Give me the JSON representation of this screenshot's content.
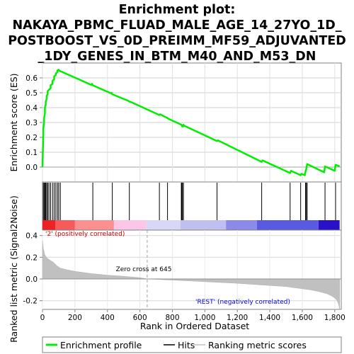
{
  "chart_data": {
    "type": "line",
    "title_lines": [
      "Enrichment plot:",
      "NAKAYA_PBMC_FLUAD_MALE_AGE_14_27YO_1D_",
      "POSTBOOST_VS_0D_PREIMM_MF59_ADJUVANTED",
      "_1DY_GENES_IN_BTM_M40_AND_M53_DN"
    ],
    "xlabel": "Rank in Ordered Dataset",
    "xlim": [
      0,
      1840
    ],
    "x_ticks": [
      0,
      200,
      400,
      600,
      800,
      1000,
      1200,
      1400,
      1600,
      1800
    ],
    "x_tick_labels": [
      "0",
      "200",
      "400",
      "600",
      "800",
      "1,000",
      "1,200",
      "1,400",
      "1,600",
      "1,800"
    ],
    "es_panel": {
      "ylabel": "Enrichment score (ES)",
      "ylim": [
        -0.1,
        0.7
      ],
      "y_ticks": [
        0.0,
        0.1,
        0.2,
        0.3,
        0.4,
        0.5,
        0.6
      ],
      "y_tick_labels": [
        "0.0",
        "0.1",
        "0.2",
        "0.3",
        "0.4",
        "0.5",
        "0.6"
      ],
      "series": [
        {
          "name": "Enrichment profile",
          "color": "#00ee00",
          "x": [
            0,
            5,
            5,
            10,
            10,
            15,
            15,
            20,
            20,
            26,
            26,
            32,
            32,
            40,
            40,
            50,
            50,
            62,
            62,
            72,
            72,
            82,
            82,
            92,
            92,
            100,
            100,
            110,
            300,
            305,
            310,
            420,
            425,
            430,
            530,
            535,
            540,
            720,
            725,
            770,
            775,
            855,
            858,
            862,
            865,
            868,
            870,
            1075,
            1080,
            1350,
            1355,
            1525,
            1530,
            1590,
            1595,
            1615,
            1620,
            1625,
            1630,
            1735,
            1740,
            1800,
            1805,
            1830
          ],
          "y": [
            0.0,
            0.22,
            0.26,
            0.3,
            0.33,
            0.36,
            0.4,
            0.42,
            0.44,
            0.46,
            0.48,
            0.49,
            0.51,
            0.52,
            0.52,
            0.53,
            0.55,
            0.56,
            0.58,
            0.59,
            0.61,
            0.62,
            0.63,
            0.64,
            0.65,
            0.655,
            0.65,
            0.645,
            0.553,
            0.56,
            0.55,
            0.497,
            0.5,
            0.49,
            0.445,
            0.44,
            0.44,
            0.35,
            0.355,
            0.33,
            0.325,
            0.285,
            0.277,
            0.28,
            0.272,
            0.285,
            0.28,
            0.175,
            0.18,
            0.035,
            0.045,
            -0.04,
            -0.025,
            -0.055,
            -0.045,
            -0.055,
            -0.03,
            -0.01,
            0.02,
            -0.035,
            0.005,
            -0.025,
            0.015,
            0.005
          ]
        }
      ]
    },
    "hits_x": [
      5,
      10,
      15,
      20,
      26,
      32,
      40,
      50,
      62,
      72,
      82,
      92,
      100,
      110,
      310,
      430,
      535,
      720,
      770,
      855,
      858,
      862,
      868,
      1075,
      1350,
      1525,
      1590,
      1620,
      1625,
      1630,
      1740,
      1805
    ],
    "rank_bar_colors": [
      {
        "from": 0,
        "to": 80,
        "color": "#ee2222"
      },
      {
        "from": 80,
        "to": 200,
        "color": "#f65a5a"
      },
      {
        "from": 200,
        "to": 440,
        "color": "#fa9090"
      },
      {
        "from": 440,
        "to": 640,
        "color": "#fcc6e6"
      },
      {
        "from": 640,
        "to": 850,
        "color": "#d8d8f6"
      },
      {
        "from": 850,
        "to": 1130,
        "color": "#c0c0f0"
      },
      {
        "from": 1130,
        "to": 1320,
        "color": "#8a8ae8"
      },
      {
        "from": 1320,
        "to": 1700,
        "color": "#5a5ae0"
      },
      {
        "from": 1700,
        "to": 1840,
        "color": "#2a10c8"
      }
    ],
    "metric_panel": {
      "ylabel": "Ranked list metric (Signal2Noise)",
      "ylim": [
        -0.28,
        0.45
      ],
      "y_ticks": [
        -0.2,
        0.0,
        0.2,
        0.4
      ],
      "y_tick_labels": [
        "-0.2",
        "0.0",
        "0.2",
        "0.4"
      ],
      "metric_x": [
        0,
        5,
        15,
        30,
        50,
        70,
        90,
        110,
        150,
        200,
        300,
        400,
        500,
        600,
        645,
        800,
        1000,
        1200,
        1400,
        1500,
        1600,
        1650,
        1700,
        1750,
        1780,
        1800,
        1815,
        1825,
        1830
      ],
      "metric_y": [
        0.35,
        0.28,
        0.22,
        0.19,
        0.17,
        0.15,
        0.12,
        0.1,
        0.085,
        0.07,
        0.05,
        0.035,
        0.025,
        0.012,
        0.0,
        -0.01,
        -0.025,
        -0.04,
        -0.06,
        -0.07,
        -0.09,
        -0.1,
        -0.115,
        -0.135,
        -0.155,
        -0.175,
        -0.2,
        -0.24,
        -0.28
      ],
      "zero_cross_rank": 645,
      "zero_cross_text": "Zero cross at 645",
      "pos_label": "'2' (positively correlated)",
      "neg_label": "'REST' (negatively correlated)"
    },
    "legend": [
      {
        "label": "Enrichment profile",
        "color": "#00ee00"
      },
      {
        "label": "Hits",
        "color": "#000000"
      },
      {
        "label": "Ranking metric scores",
        "color": "#c0c0c0"
      }
    ]
  }
}
